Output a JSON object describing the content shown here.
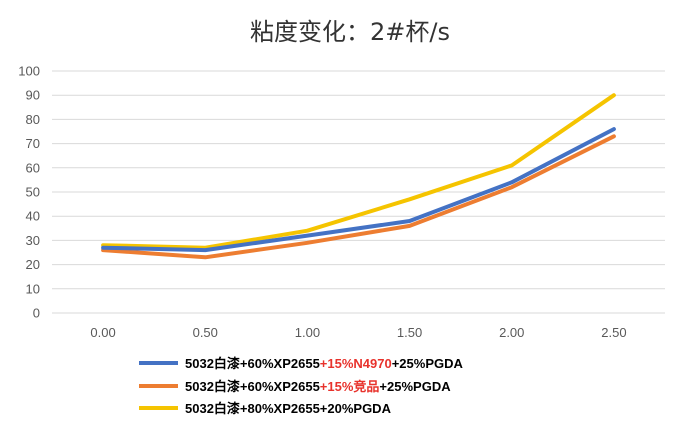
{
  "chart_data": {
    "type": "line",
    "title": "粘度变化：2#杯/s",
    "x": [
      "0.00",
      "0.50",
      "1.00",
      "1.50",
      "2.00",
      "2.50"
    ],
    "ylim": [
      0,
      100
    ],
    "yticks": [
      "0",
      "10",
      "20",
      "30",
      "40",
      "50",
      "60",
      "70",
      "80",
      "90",
      "100"
    ],
    "grid": true,
    "legend_position": "bottom",
    "series": [
      {
        "name": "5032白漆+60%XP2655+15%N4970+25%PGDA",
        "legend_parts": [
          "5032白漆+60%XP2655",
          "+15%N4970",
          "+25%PGDA"
        ],
        "color": "#4472c4",
        "values": [
          27,
          26,
          32,
          38,
          54,
          76
        ]
      },
      {
        "name": "5032白漆+60%XP2655+15%竞品+25%PGDA",
        "legend_parts": [
          "5032白漆+60%XP2655",
          "+15%竞品",
          "+25%PGDA"
        ],
        "color": "#ed7d31",
        "values": [
          26,
          23,
          29,
          36,
          52,
          73
        ]
      },
      {
        "name": "5032白漆+80%XP2655+20%PGDA",
        "legend_parts": [
          "5032白漆+80%XP2655+20%PGDA",
          "",
          ""
        ],
        "color": "#f5c400",
        "values": [
          28,
          27,
          34,
          47,
          61,
          90
        ]
      }
    ],
    "highlight_color": "#e8322c",
    "grid_color": "#d9d9d9"
  }
}
